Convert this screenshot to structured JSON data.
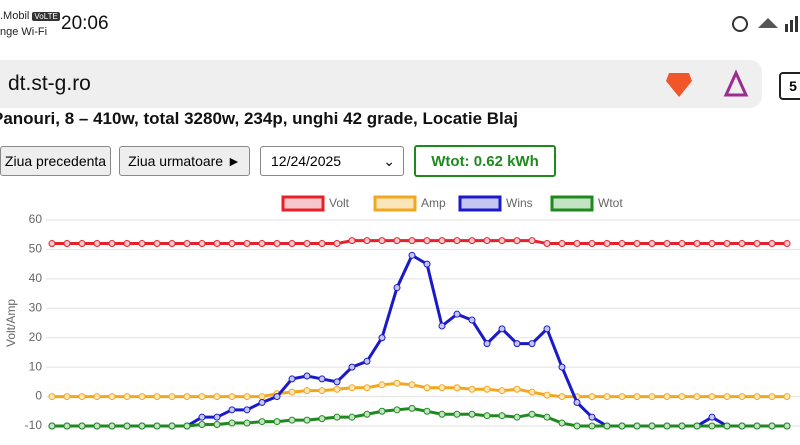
{
  "status_bar": {
    "carrier": ".Mobil",
    "volte": "VoLTE",
    "wifi": "nge Wi-Fi",
    "time": "20:06"
  },
  "browser": {
    "url": "dt.st-g.ro",
    "tabs": "5"
  },
  "page": {
    "heading": "Panouri, 8 – 410w, total 3280w, 234p, unghi 42 grade, Locatie Blaj",
    "prev_button": "Ziua precedenta",
    "next_button": "Ziua urmatoare ►",
    "date": "12/24/2025",
    "total": "Wtot: 0.62 kWh"
  },
  "chart_data": {
    "type": "line",
    "y_label": "Volt/Amp",
    "ylim": [
      -10,
      60
    ],
    "yticks": [
      -10,
      0,
      10,
      20,
      30,
      40,
      50,
      60
    ],
    "grid": true,
    "legend": "top",
    "categories": [
      null,
      null,
      null,
      null,
      null,
      null,
      null,
      null,
      null,
      null,
      null,
      null,
      null,
      null,
      null,
      null,
      null,
      null,
      null,
      null,
      null,
      null,
      null,
      null,
      null,
      null,
      null,
      null,
      null,
      null,
      null,
      null,
      null,
      null,
      null,
      null,
      null,
      null,
      null,
      null,
      null,
      null,
      null,
      null,
      null,
      null,
      null,
      null,
      null,
      null
    ],
    "series": [
      {
        "name": "Volt",
        "color": "#e8202a",
        "fill": "#f7c8cb",
        "values": [
          52,
          52,
          52,
          52,
          52,
          52,
          52,
          52,
          52,
          52,
          52,
          52,
          52,
          52,
          52,
          52,
          52,
          52,
          52,
          52,
          53,
          53,
          53,
          53,
          53,
          53,
          53,
          53,
          53,
          53,
          53,
          53,
          53,
          52,
          52,
          52,
          52,
          52,
          52,
          52,
          52,
          52,
          52,
          52,
          52,
          52,
          52,
          52,
          52,
          52
        ]
      },
      {
        "name": "Amp",
        "color": "#f2a81d",
        "fill": "#fbe5bb",
        "values": [
          0,
          0,
          0,
          0,
          0,
          0,
          0,
          0,
          0,
          0,
          0,
          0,
          0,
          0,
          0,
          1,
          1.5,
          2,
          2,
          2.5,
          3,
          3,
          4,
          4.5,
          4,
          3,
          3,
          3,
          2.5,
          2.5,
          2,
          2.5,
          1.5,
          0.5,
          0,
          0,
          0,
          0,
          0,
          0,
          0,
          0,
          0,
          0,
          0,
          0,
          0,
          0,
          0,
          0
        ]
      },
      {
        "name": "Wins",
        "color": "#1a1ac8",
        "fill": "#c5c5f0",
        "values": [
          -10,
          -10,
          -10,
          -10,
          -10,
          -10,
          -10,
          -10,
          -10,
          -10,
          -7,
          -7,
          -4.5,
          -4.5,
          -2,
          0,
          6,
          7,
          6,
          5,
          10,
          12,
          20,
          37,
          48,
          45,
          24,
          28,
          26,
          18,
          23,
          18,
          18,
          23,
          10,
          -2,
          -7,
          -10,
          -10,
          -10,
          -10,
          -10,
          -10,
          -10,
          -7,
          -10,
          -10,
          -10,
          -10,
          -10
        ]
      },
      {
        "name": "Wtot",
        "color": "#1e8a1e",
        "fill": "#c4e3c4",
        "values": [
          -10,
          -10,
          -10,
          -10,
          -10,
          -10,
          -10,
          -10,
          -10,
          -10,
          -9.5,
          -9.5,
          -9,
          -9,
          -8.5,
          -8.5,
          -8,
          -8,
          -7.5,
          -7,
          -7,
          -6,
          -5,
          -4.5,
          -4,
          -5,
          -6,
          -6,
          -6,
          -6.5,
          -6.5,
          -7,
          -6,
          -7,
          -9,
          -10,
          -10,
          -10,
          -10,
          -10,
          -10,
          -10,
          -10,
          -10,
          -10,
          -10,
          -10,
          -10,
          -10,
          -10
        ]
      }
    ]
  }
}
